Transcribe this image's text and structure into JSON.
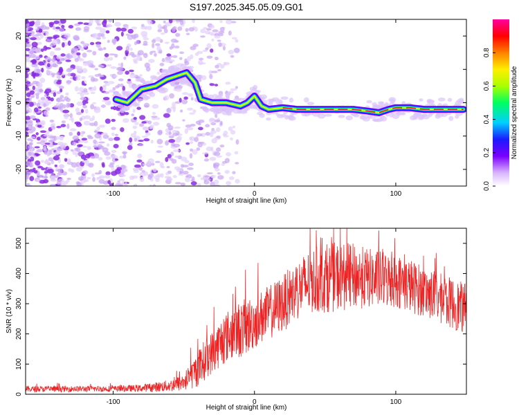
{
  "chart_data": [
    {
      "type": "heatmap",
      "title": "S197.2025.345.05.09.G01",
      "xlabel": "Height of straight line (km)",
      "ylabel": "Frequency (Hz)",
      "xlim": [
        -162,
        150
      ],
      "ylim": [
        -25,
        25
      ],
      "xticks": [
        -100,
        0,
        100
      ],
      "xtick_labels": [
        "-100",
        "0",
        "100"
      ],
      "yticks": [
        -20,
        -10,
        0,
        10,
        20
      ],
      "ytick_labels": [
        "-20",
        "-10",
        "0",
        "10",
        "20"
      ],
      "colorbar": {
        "label": "Normalized spectral amplitude",
        "range": [
          0,
          1
        ],
        "ticks": [
          0.0,
          0.2,
          0.4,
          0.6,
          0.8
        ],
        "tick_labels": [
          "0.0",
          "0.2",
          "0.4",
          "0.6",
          "0.8"
        ],
        "colors": [
          "#ffffff",
          "#d9b3ff",
          "#7b00ff",
          "#1a1aff",
          "#00cfff",
          "#00ff60",
          "#aaff00",
          "#ffee00",
          "#ff8000",
          "#ff0000",
          "#ff00a0"
        ]
      },
      "ridge": {
        "x": [
          -98,
          -90,
          -80,
          -70,
          -62,
          -55,
          -48,
          -42,
          -38,
          -30,
          -20,
          -10,
          -5,
          0,
          5,
          10,
          20,
          30,
          50,
          70,
          80,
          88,
          95,
          100,
          110,
          120,
          130,
          140,
          148
        ],
        "y": [
          1,
          0,
          4,
          5,
          7,
          8,
          9,
          6,
          1,
          0,
          0,
          -1,
          0,
          2,
          -1,
          -2,
          -1.5,
          -2,
          -2,
          -2,
          -2.5,
          -3,
          -2,
          -1.5,
          -1.5,
          -2,
          -2,
          -2,
          -2
        ]
      }
    },
    {
      "type": "line",
      "title": "",
      "xlabel": "Height of straight line (km)",
      "ylabel": "SNR (10 * v/v)",
      "xlim": [
        -162,
        150
      ],
      "ylim": [
        0,
        550
      ],
      "xticks": [
        -100,
        0,
        100
      ],
      "xtick_labels": [
        "-100",
        "0",
        "100"
      ],
      "yticks": [
        0,
        100,
        200,
        300,
        400,
        500
      ],
      "ytick_labels": [
        "0",
        "100",
        "200",
        "300",
        "400",
        "500"
      ],
      "series": [
        {
          "name": "SNR",
          "color": "#ee2222",
          "x": [
            -162,
            -140,
            -120,
            -100,
            -80,
            -60,
            -50,
            -45,
            -40,
            -35,
            -30,
            -25,
            -20,
            -15,
            -10,
            -5,
            0,
            10,
            20,
            30,
            40,
            50,
            60,
            70,
            80,
            90,
            100,
            110,
            120,
            130,
            140,
            150
          ],
          "mean": [
            17,
            17,
            18,
            18,
            20,
            28,
            40,
            60,
            85,
            115,
            140,
            165,
            190,
            205,
            215,
            225,
            240,
            270,
            300,
            345,
            375,
            385,
            390,
            390,
            385,
            380,
            375,
            360,
            340,
            320,
            300,
            280
          ],
          "spread": [
            10,
            10,
            10,
            10,
            12,
            20,
            30,
            45,
            60,
            70,
            70,
            80,
            85,
            90,
            95,
            95,
            90,
            90,
            95,
            100,
            110,
            115,
            115,
            110,
            100,
            95,
            90,
            90,
            85,
            85,
            85,
            85
          ]
        }
      ]
    }
  ]
}
